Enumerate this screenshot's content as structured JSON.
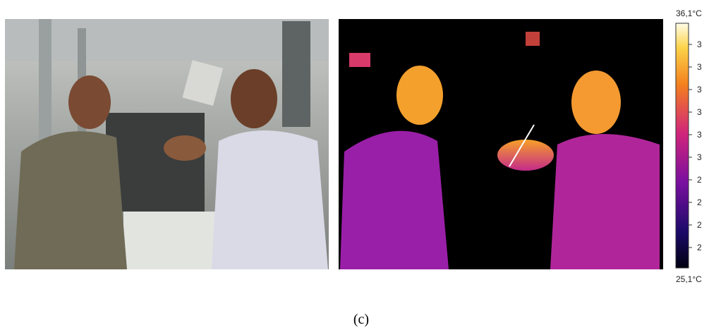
{
  "colorbar": {
    "max_label": "36,1°C",
    "min_label": "25,1°C",
    "tick_labels": [
      "3",
      "3",
      "3",
      "3",
      "3",
      "3",
      "2",
      "2",
      "2",
      "2"
    ]
  },
  "caption": "(c)"
}
